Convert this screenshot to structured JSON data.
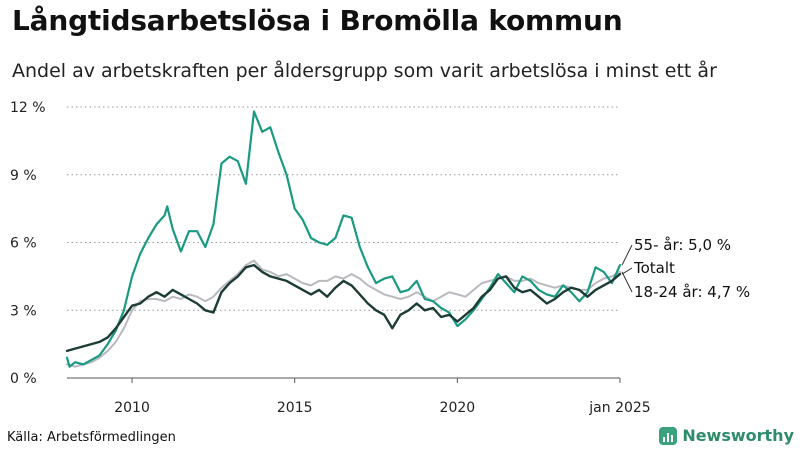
{
  "title": "Långtidsarbetslösa i Bromölla kommun",
  "subtitle": "Andel av arbetskraften per åldersgrupp som varit arbetslösa i minst ett år",
  "source": "Källa: Arbetsförmedlingen",
  "brand": {
    "name": "Newsworthy",
    "icon": "newsworthy-logo-icon"
  },
  "colors": {
    "age55": "#1b9a82",
    "total": "#1d3c36",
    "age18_24": "#b9b9c0",
    "axis": "#555555",
    "grid": "#9a9a9a"
  },
  "chart_data": {
    "type": "line",
    "x_unit": "year (decimal, monthly data)",
    "xlim": [
      2008.0,
      2025.0
    ],
    "ylim": [
      0,
      12
    ],
    "y_ticks": [
      0,
      3,
      6,
      9,
      12
    ],
    "y_tick_labels": [
      "0 %",
      "3 %",
      "6 %",
      "9 %",
      "12 %"
    ],
    "x_ticks": [
      2010,
      2015,
      2020,
      2025
    ],
    "x_tick_labels": [
      "2010",
      "2015",
      "2020",
      "jan 2025"
    ],
    "grid": "horizontal dotted",
    "series": [
      {
        "key": "total",
        "name": "Totalt",
        "label": "Totalt",
        "color_key": "total",
        "points": [
          [
            2008.0,
            1.2
          ],
          [
            2008.25,
            1.3
          ],
          [
            2008.5,
            1.4
          ],
          [
            2008.75,
            1.5
          ],
          [
            2009.0,
            1.6
          ],
          [
            2009.25,
            1.8
          ],
          [
            2009.5,
            2.2
          ],
          [
            2009.75,
            2.7
          ],
          [
            2010.0,
            3.2
          ],
          [
            2010.25,
            3.3
          ],
          [
            2010.5,
            3.6
          ],
          [
            2010.75,
            3.8
          ],
          [
            2011.0,
            3.6
          ],
          [
            2011.25,
            3.9
          ],
          [
            2011.5,
            3.7
          ],
          [
            2011.75,
            3.5
          ],
          [
            2012.0,
            3.3
          ],
          [
            2012.25,
            3.0
          ],
          [
            2012.5,
            2.9
          ],
          [
            2012.75,
            3.8
          ],
          [
            2013.0,
            4.2
          ],
          [
            2013.25,
            4.5
          ],
          [
            2013.5,
            4.9
          ],
          [
            2013.75,
            5.0
          ],
          [
            2014.0,
            4.7
          ],
          [
            2014.25,
            4.5
          ],
          [
            2014.5,
            4.4
          ],
          [
            2014.75,
            4.3
          ],
          [
            2015.0,
            4.1
          ],
          [
            2015.25,
            3.9
          ],
          [
            2015.5,
            3.7
          ],
          [
            2015.75,
            3.9
          ],
          [
            2016.0,
            3.6
          ],
          [
            2016.25,
            4.0
          ],
          [
            2016.5,
            4.3
          ],
          [
            2016.75,
            4.1
          ],
          [
            2017.0,
            3.7
          ],
          [
            2017.25,
            3.3
          ],
          [
            2017.5,
            3.0
          ],
          [
            2017.75,
            2.8
          ],
          [
            2018.0,
            2.2
          ],
          [
            2018.25,
            2.8
          ],
          [
            2018.5,
            3.0
          ],
          [
            2018.75,
            3.3
          ],
          [
            2019.0,
            3.0
          ],
          [
            2019.25,
            3.1
          ],
          [
            2019.5,
            2.7
          ],
          [
            2019.75,
            2.8
          ],
          [
            2020.0,
            2.5
          ],
          [
            2020.25,
            2.8
          ],
          [
            2020.5,
            3.1
          ],
          [
            2020.75,
            3.6
          ],
          [
            2021.0,
            3.9
          ],
          [
            2021.25,
            4.4
          ],
          [
            2021.5,
            4.5
          ],
          [
            2021.75,
            4.0
          ],
          [
            2022.0,
            3.8
          ],
          [
            2022.25,
            3.9
          ],
          [
            2022.5,
            3.6
          ],
          [
            2022.75,
            3.3
          ],
          [
            2023.0,
            3.5
          ],
          [
            2023.25,
            3.8
          ],
          [
            2023.5,
            4.0
          ],
          [
            2023.75,
            3.9
          ],
          [
            2024.0,
            3.6
          ],
          [
            2024.25,
            3.9
          ],
          [
            2024.5,
            4.1
          ],
          [
            2024.75,
            4.3
          ],
          [
            2025.0,
            4.6
          ]
        ]
      },
      {
        "key": "age55",
        "name": "55- år",
        "label": "55- år: 5,0 %",
        "color_key": "age55",
        "points": [
          [
            2008.0,
            0.9
          ],
          [
            2008.08,
            0.5
          ],
          [
            2008.25,
            0.7
          ],
          [
            2008.5,
            0.6
          ],
          [
            2008.75,
            0.8
          ],
          [
            2009.0,
            1.0
          ],
          [
            2009.25,
            1.5
          ],
          [
            2009.5,
            2.1
          ],
          [
            2009.75,
            3.0
          ],
          [
            2010.0,
            4.5
          ],
          [
            2010.25,
            5.5
          ],
          [
            2010.5,
            6.2
          ],
          [
            2010.75,
            6.8
          ],
          [
            2011.0,
            7.2
          ],
          [
            2011.08,
            7.6
          ],
          [
            2011.25,
            6.6
          ],
          [
            2011.5,
            5.6
          ],
          [
            2011.75,
            6.5
          ],
          [
            2012.0,
            6.5
          ],
          [
            2012.25,
            5.8
          ],
          [
            2012.5,
            6.8
          ],
          [
            2012.75,
            9.5
          ],
          [
            2013.0,
            9.8
          ],
          [
            2013.25,
            9.6
          ],
          [
            2013.5,
            8.6
          ],
          [
            2013.75,
            11.8
          ],
          [
            2014.0,
            10.9
          ],
          [
            2014.25,
            11.1
          ],
          [
            2014.5,
            10.0
          ],
          [
            2014.75,
            9.0
          ],
          [
            2015.0,
            7.5
          ],
          [
            2015.25,
            7.0
          ],
          [
            2015.5,
            6.2
          ],
          [
            2015.75,
            6.0
          ],
          [
            2016.0,
            5.9
          ],
          [
            2016.25,
            6.2
          ],
          [
            2016.5,
            7.2
          ],
          [
            2016.75,
            7.1
          ],
          [
            2017.0,
            5.8
          ],
          [
            2017.25,
            4.9
          ],
          [
            2017.5,
            4.2
          ],
          [
            2017.75,
            4.4
          ],
          [
            2018.0,
            4.5
          ],
          [
            2018.25,
            3.8
          ],
          [
            2018.5,
            3.9
          ],
          [
            2018.75,
            4.3
          ],
          [
            2019.0,
            3.5
          ],
          [
            2019.25,
            3.4
          ],
          [
            2019.5,
            3.1
          ],
          [
            2019.75,
            2.9
          ],
          [
            2020.0,
            2.3
          ],
          [
            2020.25,
            2.6
          ],
          [
            2020.5,
            3.0
          ],
          [
            2020.75,
            3.5
          ],
          [
            2021.0,
            4.0
          ],
          [
            2021.25,
            4.6
          ],
          [
            2021.5,
            4.2
          ],
          [
            2021.75,
            3.8
          ],
          [
            2022.0,
            4.5
          ],
          [
            2022.25,
            4.3
          ],
          [
            2022.5,
            3.9
          ],
          [
            2022.75,
            3.7
          ],
          [
            2023.0,
            3.6
          ],
          [
            2023.25,
            4.1
          ],
          [
            2023.5,
            3.8
          ],
          [
            2023.75,
            3.4
          ],
          [
            2024.0,
            3.8
          ],
          [
            2024.25,
            4.9
          ],
          [
            2024.5,
            4.7
          ],
          [
            2024.75,
            4.2
          ],
          [
            2025.0,
            5.0
          ]
        ]
      },
      {
        "key": "age18_24",
        "name": "18-24 år",
        "label": "18-24 år: 4,7 %",
        "color_key": "age18_24",
        "points": [
          [
            2008.0,
            0.6
          ],
          [
            2008.25,
            0.5
          ],
          [
            2008.5,
            0.6
          ],
          [
            2008.75,
            0.7
          ],
          [
            2009.0,
            0.9
          ],
          [
            2009.25,
            1.2
          ],
          [
            2009.5,
            1.6
          ],
          [
            2009.75,
            2.2
          ],
          [
            2010.0,
            3.0
          ],
          [
            2010.25,
            3.4
          ],
          [
            2010.5,
            3.5
          ],
          [
            2010.75,
            3.5
          ],
          [
            2011.0,
            3.4
          ],
          [
            2011.25,
            3.6
          ],
          [
            2011.5,
            3.5
          ],
          [
            2011.75,
            3.7
          ],
          [
            2012.0,
            3.6
          ],
          [
            2012.25,
            3.4
          ],
          [
            2012.5,
            3.6
          ],
          [
            2012.75,
            4.0
          ],
          [
            2013.0,
            4.3
          ],
          [
            2013.25,
            4.6
          ],
          [
            2013.5,
            5.0
          ],
          [
            2013.75,
            5.2
          ],
          [
            2014.0,
            4.8
          ],
          [
            2014.25,
            4.7
          ],
          [
            2014.5,
            4.5
          ],
          [
            2014.75,
            4.6
          ],
          [
            2015.0,
            4.4
          ],
          [
            2015.25,
            4.2
          ],
          [
            2015.5,
            4.1
          ],
          [
            2015.75,
            4.3
          ],
          [
            2016.0,
            4.3
          ],
          [
            2016.25,
            4.5
          ],
          [
            2016.5,
            4.4
          ],
          [
            2016.75,
            4.6
          ],
          [
            2017.0,
            4.4
          ],
          [
            2017.25,
            4.1
          ],
          [
            2017.5,
            3.9
          ],
          [
            2017.75,
            3.7
          ],
          [
            2018.0,
            3.6
          ],
          [
            2018.25,
            3.5
          ],
          [
            2018.5,
            3.6
          ],
          [
            2018.75,
            3.8
          ],
          [
            2019.0,
            3.6
          ],
          [
            2019.25,
            3.4
          ],
          [
            2019.5,
            3.6
          ],
          [
            2019.75,
            3.8
          ],
          [
            2020.0,
            3.7
          ],
          [
            2020.25,
            3.6
          ],
          [
            2020.5,
            3.9
          ],
          [
            2020.75,
            4.2
          ],
          [
            2021.0,
            4.3
          ],
          [
            2021.25,
            4.4
          ],
          [
            2021.5,
            4.5
          ],
          [
            2021.75,
            4.3
          ],
          [
            2022.0,
            4.3
          ],
          [
            2022.25,
            4.4
          ],
          [
            2022.5,
            4.2
          ],
          [
            2022.75,
            4.1
          ],
          [
            2023.0,
            4.0
          ],
          [
            2023.25,
            4.1
          ],
          [
            2023.5,
            4.0
          ],
          [
            2023.75,
            3.9
          ],
          [
            2024.0,
            3.9
          ],
          [
            2024.25,
            4.2
          ],
          [
            2024.5,
            4.4
          ],
          [
            2024.75,
            4.5
          ],
          [
            2025.0,
            4.7
          ]
        ]
      }
    ]
  }
}
